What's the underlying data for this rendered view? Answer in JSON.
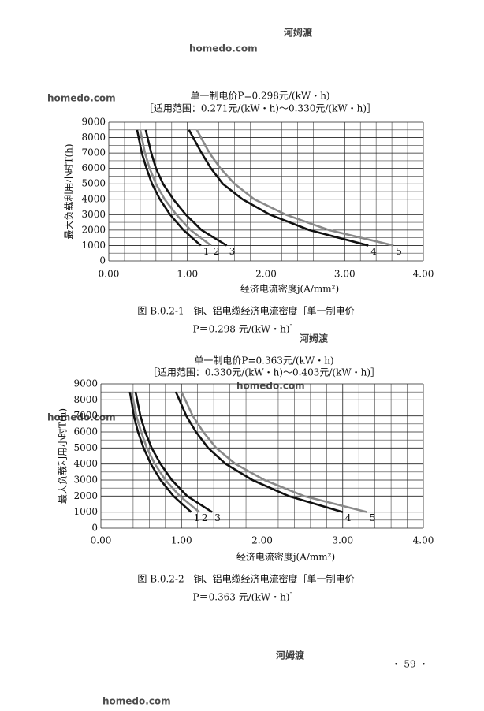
{
  "watermark": [
    "homedo.com",
    "河姆渡"
  ],
  "chart_data": [
    {
      "type": "line",
      "title": "单一制电价P=0.298元/(kW・h)",
      "subtitle": "［适用范围：0.271元/(kW・h)～0.330元/(kW・h)］",
      "x_label": "经济电流密度j(A/mm²)",
      "y_label": "最大负载利用小时T(h)",
      "xlim": [
        0,
        4
      ],
      "ylim": [
        0,
        9000
      ],
      "xticks": [
        {
          "value": 0,
          "label": "0.00"
        },
        {
          "value": 1,
          "label": "1.00"
        },
        {
          "value": 2,
          "label": "2.00"
        },
        {
          "value": 3,
          "label": "3.00"
        },
        {
          "value": 4,
          "label": "4.00"
        }
      ],
      "yticks": [
        0,
        1000,
        2000,
        3000,
        4000,
        5000,
        6000,
        7000,
        8000,
        9000
      ],
      "minor_xticks": [
        0.2,
        0.4,
        0.6,
        0.8,
        1.2,
        1.4,
        1.6,
        1.8,
        2.2,
        2.4,
        2.6,
        2.8,
        3.2,
        3.4,
        3.6,
        3.8
      ],
      "minor_yticks": [
        500,
        1500,
        2500,
        3500,
        4500,
        5500,
        6500,
        7500,
        8500
      ],
      "grid": true,
      "series": [
        {
          "name": "1",
          "color": "#111111",
          "x": [
            0.36,
            0.42,
            0.48,
            0.55,
            0.65,
            0.78,
            0.95,
            1.17
          ],
          "values": [
            8500,
            7000,
            6000,
            5000,
            4000,
            3000,
            2000,
            1000
          ]
        },
        {
          "name": "2",
          "color": "#8a8a8a",
          "x": [
            0.4,
            0.46,
            0.52,
            0.6,
            0.71,
            0.86,
            1.04,
            1.3
          ],
          "values": [
            8500,
            7000,
            6000,
            5000,
            4000,
            3000,
            2000,
            1000
          ]
        },
        {
          "name": "3",
          "color": "#111111",
          "x": [
            0.47,
            0.54,
            0.6,
            0.69,
            0.82,
            0.98,
            1.18,
            1.5
          ],
          "values": [
            8500,
            7000,
            6000,
            5000,
            4000,
            3000,
            2000,
            1000
          ]
        },
        {
          "name": "4",
          "color": "#111111",
          "x": [
            1.02,
            1.18,
            1.3,
            1.45,
            1.7,
            2.05,
            2.55,
            3.3
          ],
          "values": [
            8500,
            7000,
            6000,
            5000,
            4000,
            3000,
            2000,
            1000
          ]
        },
        {
          "name": "5",
          "color": "#8a8a8a",
          "x": [
            1.12,
            1.28,
            1.42,
            1.6,
            1.85,
            2.25,
            2.8,
            3.62
          ],
          "values": [
            8500,
            7000,
            6000,
            5000,
            4000,
            3000,
            2000,
            1000
          ]
        }
      ],
      "caption": [
        "图 B.0.2-1　铜、铝电缆经济电流密度［单一制电价",
        "P＝0.298 元/(kW・h)］"
      ]
    },
    {
      "type": "line",
      "title": "单一制电价P=0.363元/(kW・h)",
      "subtitle": "［适用范围：0.330元/(kW・h)～0.403元/(kW・h)］",
      "x_label": "经济电流密度j(A/mm²)",
      "y_label": "最大负载利用小时T(h)",
      "xlim": [
        0,
        4
      ],
      "ylim": [
        0,
        9000
      ],
      "xticks": [
        {
          "value": 0,
          "label": "0.00"
        },
        {
          "value": 1,
          "label": "1.00"
        },
        {
          "value": 2,
          "label": "2.00"
        },
        {
          "value": 3,
          "label": "3.00"
        },
        {
          "value": 4,
          "label": "4.00"
        }
      ],
      "yticks": [
        0,
        1000,
        2000,
        3000,
        4000,
        5000,
        6000,
        7000,
        8000,
        9000
      ],
      "minor_xticks": [
        0.2,
        0.4,
        0.6,
        0.8,
        1.2,
        1.4,
        1.6,
        1.8,
        2.2,
        2.4,
        2.6,
        2.8,
        3.2,
        3.4,
        3.6,
        3.8
      ],
      "minor_yticks": [
        500,
        1500,
        2500,
        3500,
        4500,
        5500,
        6500,
        7500,
        8500
      ],
      "grid": true,
      "series": [
        {
          "name": "1",
          "color": "#111111",
          "x": [
            0.36,
            0.41,
            0.46,
            0.53,
            0.62,
            0.74,
            0.9,
            1.12
          ],
          "values": [
            8500,
            7000,
            6000,
            5000,
            4000,
            3000,
            2000,
            1000
          ]
        },
        {
          "name": "2",
          "color": "#8a8a8a",
          "x": [
            0.38,
            0.44,
            0.5,
            0.57,
            0.67,
            0.8,
            0.98,
            1.22
          ],
          "values": [
            8500,
            7000,
            6000,
            5000,
            4000,
            3000,
            2000,
            1000
          ]
        },
        {
          "name": "3",
          "color": "#111111",
          "x": [
            0.43,
            0.49,
            0.55,
            0.63,
            0.74,
            0.88,
            1.07,
            1.38
          ],
          "values": [
            8500,
            7000,
            6000,
            5000,
            4000,
            3000,
            2000,
            1000
          ]
        },
        {
          "name": "4",
          "color": "#111111",
          "x": [
            0.93,
            1.06,
            1.18,
            1.33,
            1.55,
            1.88,
            2.33,
            3.0
          ],
          "values": [
            8500,
            7000,
            6000,
            5000,
            4000,
            3000,
            2000,
            1000
          ]
        },
        {
          "name": "5",
          "color": "#8a8a8a",
          "x": [
            1.0,
            1.14,
            1.27,
            1.43,
            1.67,
            2.03,
            2.52,
            3.3
          ],
          "values": [
            8500,
            7000,
            6000,
            5000,
            4000,
            3000,
            2000,
            1000
          ]
        }
      ],
      "caption": [
        "图 B.0.2-2　铜、铝电缆经济电流密度［单一制电价",
        "P＝0.363 元/(kW・h)］"
      ]
    }
  ],
  "page_number": "・ 59 ・"
}
